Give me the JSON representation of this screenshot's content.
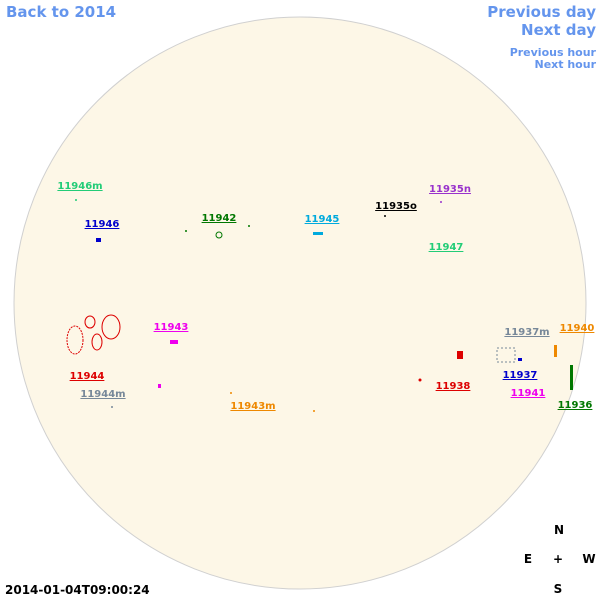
{
  "nav": {
    "back": "Back to 2014",
    "prev_day": "Previous day",
    "next_day": "Next day",
    "prev_hour": "Previous hour",
    "next_hour": "Next hour"
  },
  "regions": [
    "11946m",
    "11946",
    "11942",
    "11945",
    "11935o",
    "11935n",
    "11947",
    "11943",
    "11944",
    "11944m",
    "11943m",
    "11938",
    "11937m",
    "11940",
    "11937",
    "11941",
    "11936"
  ],
  "timestamp": "2014-01-04T09:00:24",
  "compass": {
    "n": "N",
    "e": "E",
    "center": "+",
    "w": "W",
    "s": "S"
  }
}
